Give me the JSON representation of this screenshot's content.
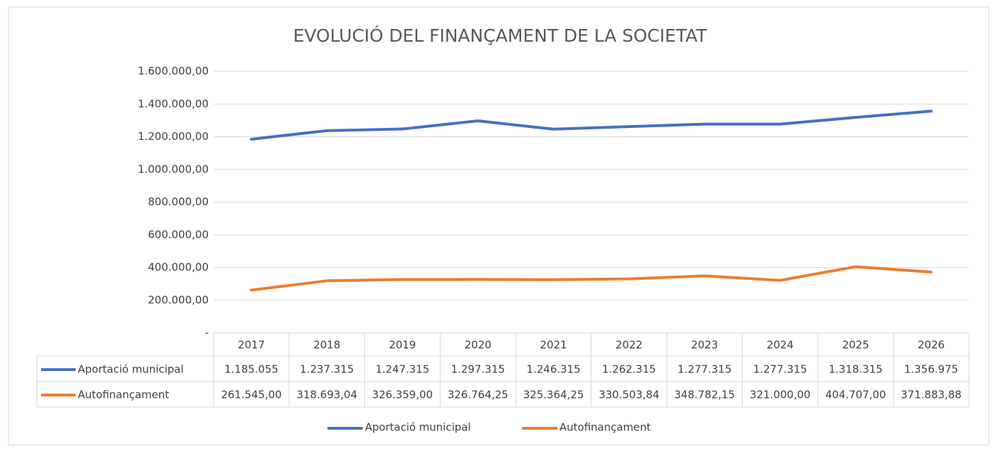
{
  "chart_data": {
    "type": "line",
    "title": "EVOLUCIÓ DEL FINANÇAMENT DE LA SOCIETAT",
    "categories": [
      "2017",
      "2018",
      "2019",
      "2020",
      "2021",
      "2022",
      "2023",
      "2024",
      "2025",
      "2026"
    ],
    "series": [
      {
        "name": "Aportació municipal",
        "color": "#4472c4",
        "values": [
          1185055,
          1237315,
          1247315,
          1297315,
          1246315,
          1262315,
          1277315,
          1277315,
          1318315,
          1356975
        ],
        "value_labels": [
          "1.185.055",
          "1.237.315",
          "1.247.315",
          "1.297.315",
          "1.246.315",
          "1.262.315",
          "1.277.315",
          "1.277.315",
          "1.318.315",
          "1.356.975"
        ]
      },
      {
        "name": "Autofinançament",
        "color": "#ed7d31",
        "values": [
          261545.0,
          318693.04,
          326359.0,
          326764.25,
          325364.25,
          330503.84,
          348782.15,
          321000.0,
          404707.0,
          371883.88
        ],
        "value_labels": [
          "261.545,00",
          "318.693,04",
          "326.359,00",
          "326.764,25",
          "325.364,25",
          "330.503,84",
          "348.782,15",
          "321.000,00",
          "404.707,00",
          "371.883,88"
        ]
      }
    ],
    "ylim": [
      0,
      1600000
    ],
    "yticks": [
      {
        "value": 0,
        "label": "-"
      },
      {
        "value": 200000,
        "label": "200.000,00"
      },
      {
        "value": 400000,
        "label": "400.000,00"
      },
      {
        "value": 600000,
        "label": "600.000,00"
      },
      {
        "value": 800000,
        "label": "800.000,00"
      },
      {
        "value": 1000000,
        "label": "1.000.000,00"
      },
      {
        "value": 1200000,
        "label": "1.200.000,00"
      },
      {
        "value": 1400000,
        "label": "1.400.000,00"
      },
      {
        "value": 1600000,
        "label": "1.600.000,00"
      }
    ],
    "grid": true,
    "legend": "bottom"
  }
}
